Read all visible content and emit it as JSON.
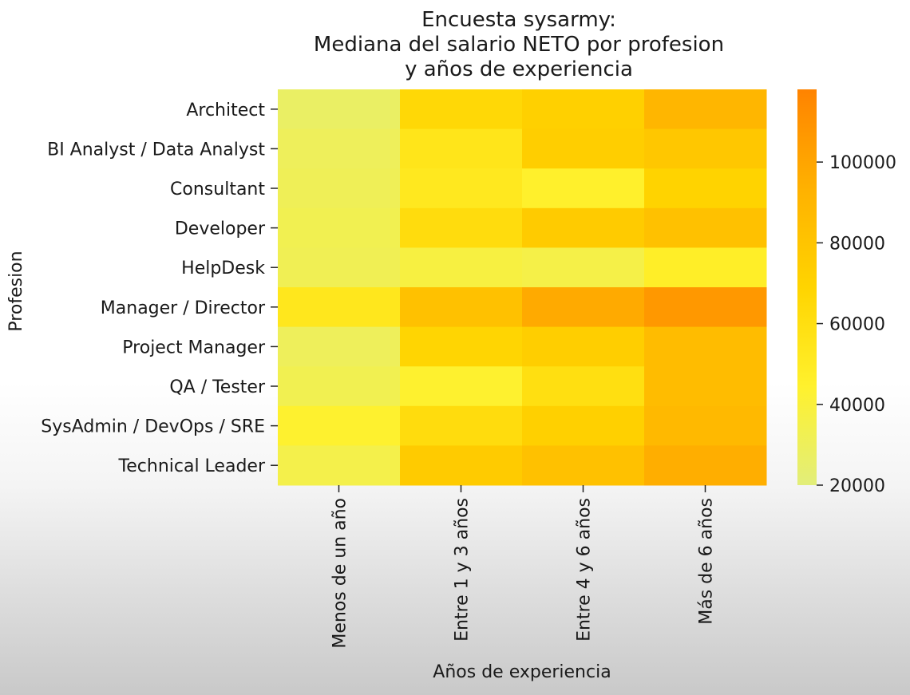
{
  "chart_data": {
    "type": "heatmap",
    "title": [
      "Encuesta sysarmy:",
      "Mediana del salario NETO por profesion",
      "y años de experiencia"
    ],
    "xlabel": "Años de experiencia",
    "ylabel": "Profesion",
    "x_categories": [
      "Menos de un año",
      "Entre 1 y 3 años",
      "Entre 4 y 6 años",
      "Más de 6 años"
    ],
    "y_categories": [
      "Architect",
      "BI Analyst / Data Analyst",
      "Consultant",
      "Developer",
      "HelpDesk",
      "Manager / Director",
      "Project Manager",
      "QA / Tester",
      "SysAdmin / DevOps / SRE",
      "Technical Leader"
    ],
    "values": [
      [
        27000,
        66000,
        72000,
        90000
      ],
      [
        30000,
        55000,
        73000,
        78000
      ],
      [
        31000,
        52000,
        45000,
        70000
      ],
      [
        33000,
        62000,
        75000,
        82000
      ],
      [
        32000,
        38000,
        36000,
        47000
      ],
      [
        53000,
        82000,
        97000,
        107000
      ],
      [
        30000,
        68000,
        73000,
        86000
      ],
      [
        33000,
        44000,
        60000,
        86000
      ],
      [
        44000,
        62000,
        72000,
        88000
      ],
      [
        35000,
        75000,
        82000,
        95000
      ]
    ],
    "colorbar": {
      "min": 20000,
      "max": 118000,
      "ticks": [
        20000,
        40000,
        60000,
        80000,
        100000
      ],
      "colors": [
        "#e2ee7a",
        "#fff12d",
        "#ffd400",
        "#ffb100",
        "#ff8300"
      ]
    }
  }
}
